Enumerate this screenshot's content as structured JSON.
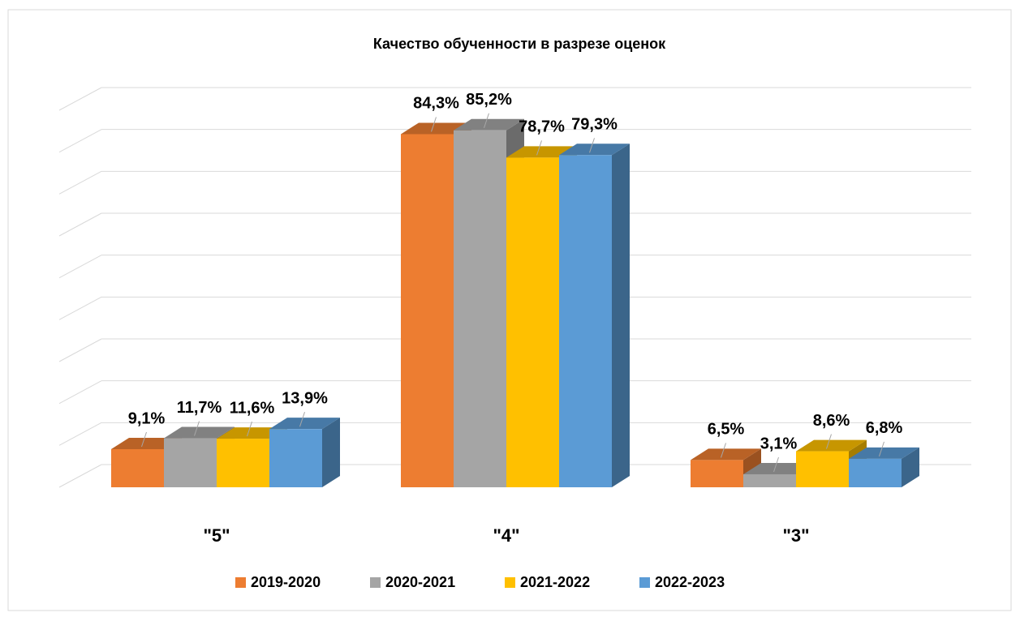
{
  "chart_data": {
    "type": "bar3d",
    "title": "Качество обученности в разрезе оценок",
    "categories": [
      "\"5\"",
      "\"4\"",
      "\"3\""
    ],
    "series": [
      {
        "name": "2019-2020",
        "color": "#ED7D31",
        "values": [
          9.1,
          84.3,
          6.5
        ],
        "value_labels": [
          "9,1%",
          "84,3%",
          "6,5%"
        ]
      },
      {
        "name": "2020-2021",
        "color": "#A5A5A5",
        "values": [
          11.7,
          85.2,
          3.1
        ],
        "value_labels": [
          "11,7%",
          "85,2%",
          "3,1%"
        ]
      },
      {
        "name": "2021-2022",
        "color": "#FFC000",
        "values": [
          11.6,
          78.7,
          8.6
        ],
        "value_labels": [
          "11,6%",
          "78,7%",
          "8,6%"
        ]
      },
      {
        "name": "2022-2023",
        "color": "#5B9BD5",
        "values": [
          13.9,
          79.3,
          6.8
        ],
        "value_labels": [
          "13,9%",
          "79,3%",
          "6,8%"
        ]
      }
    ],
    "ylim": [
      0,
      90
    ],
    "yticks": [
      0,
      10,
      20,
      30,
      40,
      50,
      60,
      70,
      80,
      90
    ],
    "grid": true,
    "legend": "bottom"
  }
}
